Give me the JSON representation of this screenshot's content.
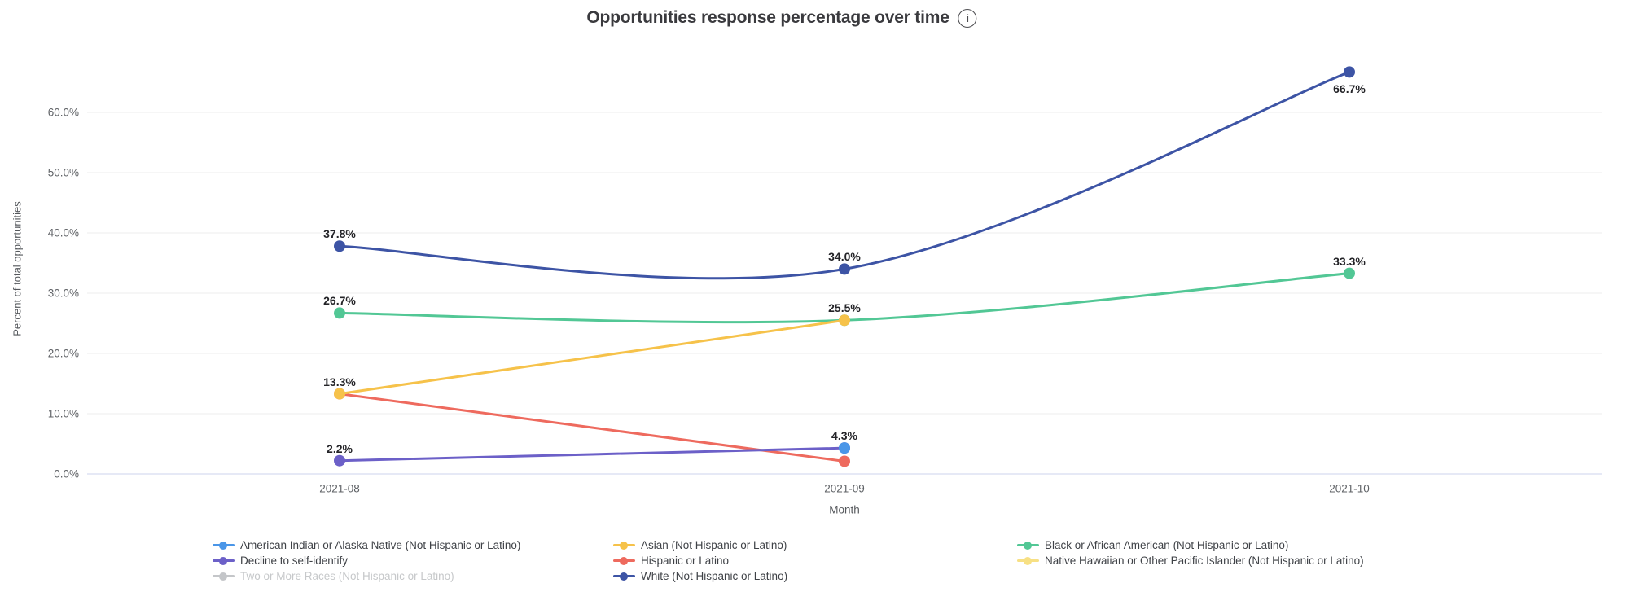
{
  "chart_data": {
    "type": "line",
    "title": "Opportunities response percentage over time",
    "xlabel": "Month",
    "ylabel": "Percent of total opportunities",
    "categories": [
      "2021-08",
      "2021-09",
      "2021-10"
    ],
    "y_axis": {
      "ticks": [
        {
          "value": 0,
          "label": "0.0%"
        },
        {
          "value": 10,
          "label": "10.0%"
        },
        {
          "value": 20,
          "label": "20.0%"
        },
        {
          "value": 30,
          "label": "30.0%"
        },
        {
          "value": 40,
          "label": "40.0%"
        },
        {
          "value": 50,
          "label": "50.0%"
        },
        {
          "value": 60,
          "label": "60.0%"
        }
      ],
      "grid": true
    },
    "series": [
      {
        "key": "american-indian",
        "name": "American Indian or Alaska Native (Not Hispanic or Latino)",
        "color": "#4a96e8",
        "values": [
          null,
          4.3,
          null
        ],
        "enabled": true
      },
      {
        "key": "asian",
        "name": "Asian (Not Hispanic or Latino)",
        "color": "#f6c24a",
        "values": [
          13.3,
          25.5,
          null
        ],
        "enabled": true
      },
      {
        "key": "black",
        "name": "Black or African American (Not Hispanic or Latino)",
        "color": "#52c795",
        "values": [
          26.7,
          25.5,
          33.3
        ],
        "enabled": true
      },
      {
        "key": "decline",
        "name": "Decline to self-identify",
        "color": "#6c60c8",
        "values": [
          2.2,
          4.3,
          null
        ],
        "enabled": true
      },
      {
        "key": "hispanic",
        "name": "Hispanic or Latino",
        "color": "#ee6a5e",
        "values": [
          13.3,
          2.1,
          null
        ],
        "enabled": true
      },
      {
        "key": "native-hawaiian",
        "name": "Native Hawaiian or Other Pacific Islander (Not Hispanic or Latino)",
        "color": "#f7e084",
        "values": [
          null,
          null,
          null
        ],
        "enabled": true
      },
      {
        "key": "two-or-more",
        "name": "Two or More Races (Not Hispanic or Latino)",
        "color": "#c4c6c9",
        "values": [
          null,
          null,
          null
        ],
        "enabled": false
      },
      {
        "key": "white",
        "name": "White (Not Hispanic or Latino)",
        "color": "#3d54a5",
        "values": [
          37.8,
          34.0,
          66.7
        ],
        "enabled": true
      }
    ],
    "point_labels": [
      {
        "series": "white",
        "idx": 0,
        "text": "37.8%",
        "placement": "above"
      },
      {
        "series": "white",
        "idx": 1,
        "text": "34.0%",
        "placement": "above"
      },
      {
        "series": "white",
        "idx": 2,
        "text": "66.7%",
        "placement": "below"
      },
      {
        "series": "black",
        "idx": 0,
        "text": "26.7%",
        "placement": "above"
      },
      {
        "series": "black",
        "idx": 2,
        "text": "33.3%",
        "placement": "above"
      },
      {
        "series": "asian",
        "idx": 0,
        "text": "13.3%",
        "placement": "above"
      },
      {
        "series": "asian",
        "idx": 1,
        "text": "25.5%",
        "placement": "above"
      },
      {
        "series": "decline",
        "idx": 0,
        "text": "2.2%",
        "placement": "above"
      },
      {
        "series": "american-indian",
        "idx": 1,
        "text": "4.3%",
        "placement": "above"
      }
    ],
    "legend_columns": [
      [
        "american-indian",
        "decline",
        "two-or-more"
      ],
      [
        "asian",
        "hispanic",
        "white"
      ],
      [
        "black",
        "native-hawaiian"
      ]
    ],
    "legend_position": "bottom"
  },
  "icons": {
    "info": "i"
  },
  "colors": {
    "grid_line": "#ececec",
    "zero_line": "#cdd3ed",
    "title_text": "#3a3a3e",
    "axis_text": "#5f6266",
    "point_label_text": "#242428",
    "legend_text": "#3f4247",
    "legend_disabled_text": "#c6c8ca"
  }
}
